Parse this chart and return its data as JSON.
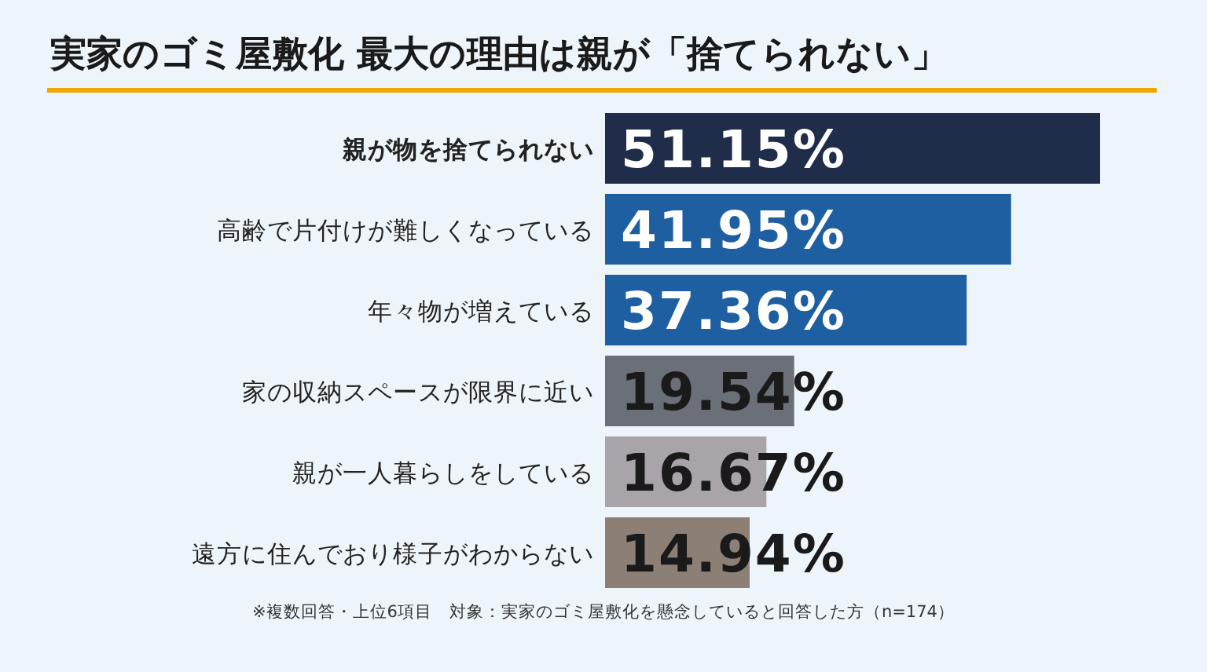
{
  "chart_data": {
    "type": "bar",
    "orientation": "horizontal",
    "title": "実家のゴミ屋敷化 最大の理由は親が「捨てられない」",
    "categories": [
      "親が物を捨てられない",
      "高齢で片付けが難しくなっている",
      "年々物が増えている",
      "家の収納スペースが限界に近い",
      "親が一人暮らしをしている",
      "遠方に住んでおり様子がわからない"
    ],
    "values": [
      51.15,
      41.95,
      37.36,
      19.54,
      16.67,
      14.94
    ],
    "value_labels": [
      "51.15%",
      "41.95%",
      "37.36%",
      "19.54%",
      "16.67%",
      "14.94%"
    ],
    "colors": [
      "#1f2d4a",
      "#1d5fa0",
      "#1d5fa0",
      "#6b6f78",
      "#a9a4aa",
      "#8c7f76"
    ],
    "annotations": [
      "※複数回答・上位6項目　対象：実家のゴミ屋敷化を懸念していると回答した方（n=174）"
    ]
  }
}
